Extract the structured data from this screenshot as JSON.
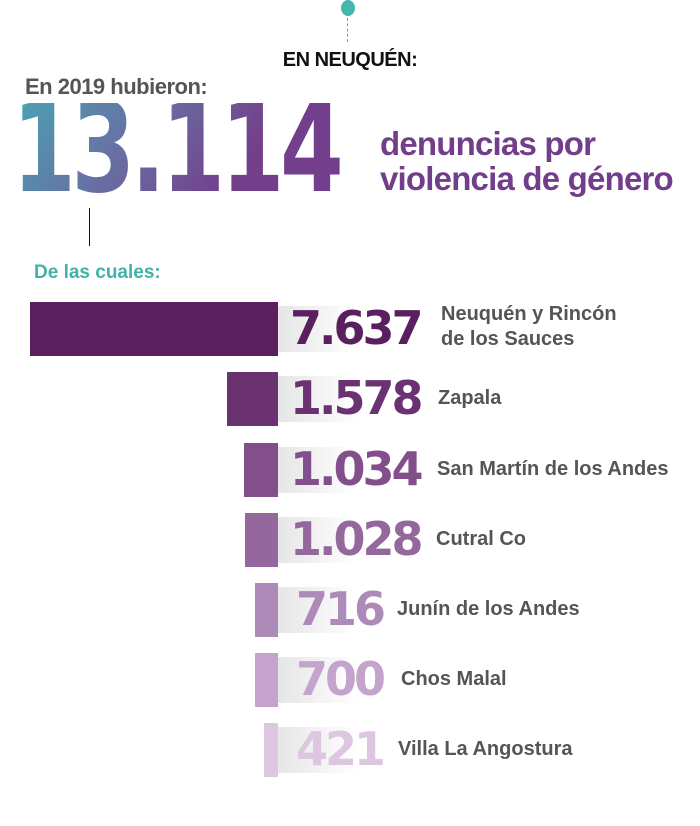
{
  "header": {
    "region": "EN NEUQUÉN:",
    "intro": "En 2019 hubieron:",
    "total": "13.114",
    "description_line1": "denuncias por",
    "description_line2": "violencia de género",
    "subtitle": "De las cuales:"
  },
  "colors": {
    "accent": "#45b7ad",
    "title_purple": "#723e8b"
  },
  "chart_data": {
    "type": "bar",
    "orientation": "horizontal",
    "categories": [
      "Neuquén y Rincón de los Sauces",
      "Zapala",
      "San Martín de los Andes",
      "Cutral Co",
      "Junín de los Andes",
      "Chos Malal",
      "Villa La Angostura"
    ],
    "values": [
      7637,
      1578,
      1034,
      1028,
      716,
      700,
      421
    ],
    "value_labels": [
      "7.637",
      "1.578",
      "1.034",
      "1.028",
      "716",
      "700",
      "421"
    ],
    "label_lines": [
      [
        "Neuquén y Rincón",
        "de los Sauces"
      ],
      [
        "Zapala"
      ],
      [
        "San Martín de los Andes"
      ],
      [
        "Cutral Co"
      ],
      [
        "Junín de los Andes"
      ],
      [
        "Chos Malal"
      ],
      [
        "Villa La Angostura"
      ]
    ],
    "colors": [
      "#5a1f5e",
      "#6b3272",
      "#834e8c",
      "#94689c",
      "#ad8ab8",
      "#c4a3cc",
      "#dcc6e0"
    ]
  }
}
